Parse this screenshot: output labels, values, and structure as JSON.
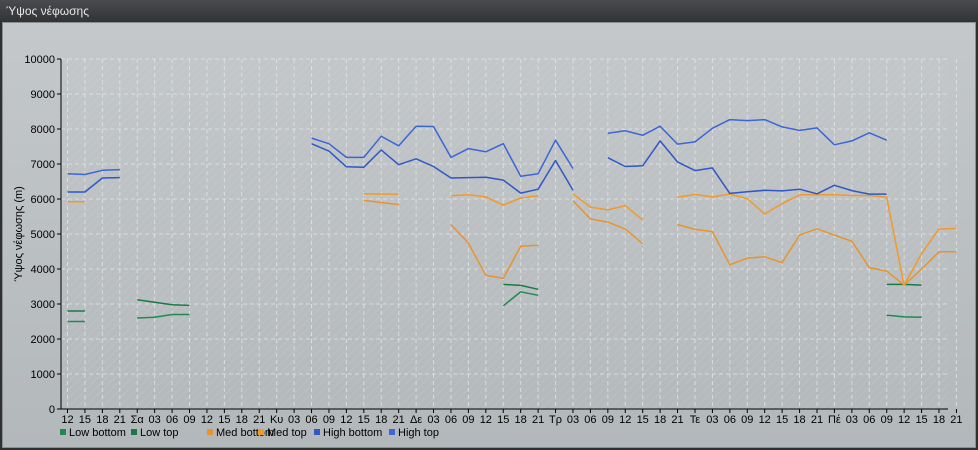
{
  "window": {
    "title": "Ύψος νέφωσης"
  },
  "chart_data": {
    "type": "line",
    "title": "",
    "xlabel": "",
    "ylabel": "Ύψος νέφωσης (m)",
    "ylim": [
      0,
      10000
    ],
    "yticks": [
      0,
      1000,
      2000,
      3000,
      4000,
      5000,
      6000,
      7000,
      8000,
      9000,
      10000
    ],
    "grid": true,
    "legend_position": "bottom-left",
    "x_tick_labels": [
      "12",
      "15",
      "18",
      "21",
      "Σα",
      "03",
      "06",
      "09",
      "12",
      "15",
      "18",
      "21",
      "Κυ",
      "03",
      "06",
      "09",
      "12",
      "15",
      "18",
      "21",
      "Δε",
      "03",
      "06",
      "09",
      "12",
      "15",
      "18",
      "21",
      "Τρ",
      "03",
      "06",
      "09",
      "12",
      "15",
      "18",
      "21",
      "Τε",
      "03",
      "06",
      "09",
      "12",
      "15",
      "18",
      "21",
      "Πέ",
      "03",
      "06",
      "09",
      "12",
      "15",
      "18",
      "21"
    ],
    "series": [
      {
        "name": "Low bottom",
        "color": "#1f8a4f",
        "values": [
          2500,
          2500,
          null,
          null,
          2600,
          2620,
          2700,
          2700,
          null,
          null,
          null,
          null,
          null,
          null,
          null,
          null,
          null,
          null,
          null,
          null,
          null,
          null,
          null,
          null,
          null,
          2950,
          3350,
          3250,
          null,
          null,
          null,
          null,
          null,
          null,
          null,
          null,
          null,
          null,
          null,
          null,
          null,
          null,
          null,
          null,
          null,
          null,
          null,
          2680,
          2630,
          2620,
          null,
          null
        ]
      },
      {
        "name": "Low top",
        "color": "#1a7a45",
        "values": [
          2800,
          2800,
          null,
          null,
          3120,
          3050,
          2980,
          2960,
          null,
          null,
          null,
          null,
          null,
          null,
          null,
          null,
          null,
          null,
          null,
          null,
          null,
          null,
          null,
          null,
          null,
          3560,
          3530,
          3420,
          null,
          null,
          null,
          null,
          null,
          null,
          null,
          null,
          null,
          null,
          null,
          null,
          null,
          null,
          null,
          null,
          null,
          null,
          null,
          3560,
          3560,
          3540,
          null,
          null
        ]
      },
      {
        "name": "Med bottom",
        "color": "#e8932e",
        "values": [
          5920,
          5920,
          null,
          null,
          null,
          null,
          null,
          null,
          null,
          null,
          null,
          null,
          null,
          null,
          null,
          null,
          null,
          5960,
          5900,
          5840,
          null,
          null,
          5270,
          4740,
          3820,
          3730,
          4650,
          4680,
          null,
          5950,
          5430,
          5340,
          5140,
          4720,
          null,
          5270,
          5130,
          5070,
          4120,
          4310,
          4350,
          4180,
          4970,
          5150,
          4970,
          4790,
          4040,
          3940,
          3540,
          4000,
          4490,
          4490
        ]
      },
      {
        "name": "Med top",
        "color": "#f29a28",
        "values": [
          5920,
          5920,
          null,
          null,
          null,
          null,
          null,
          null,
          null,
          null,
          null,
          null,
          null,
          null,
          null,
          null,
          null,
          6150,
          6140,
          6140,
          null,
          null,
          6090,
          6120,
          6060,
          5820,
          6030,
          6090,
          null,
          6150,
          5770,
          5690,
          5810,
          5400,
          null,
          6050,
          6130,
          6060,
          6140,
          6010,
          5570,
          5870,
          6120,
          6120,
          6120,
          6100,
          6100,
          6050,
          3530,
          4440,
          5140,
          5160
        ]
      },
      {
        "name": "High bottom",
        "color": "#2f57c6",
        "values": [
          6200,
          6200,
          6600,
          6610,
          null,
          null,
          null,
          null,
          null,
          null,
          null,
          null,
          null,
          null,
          7580,
          7370,
          6920,
          6910,
          7400,
          6980,
          7150,
          6930,
          6600,
          6610,
          6620,
          6540,
          6170,
          6280,
          7100,
          6250,
          null,
          7180,
          6930,
          6950,
          7660,
          7060,
          6810,
          6890,
          6160,
          6210,
          6250,
          6230,
          6280,
          6150,
          6390,
          6240,
          6140,
          6140,
          null,
          null,
          null,
          null
        ]
      },
      {
        "name": "High top",
        "color": "#3a66d6",
        "values": [
          6720,
          6700,
          6820,
          6840,
          null,
          null,
          null,
          null,
          null,
          null,
          null,
          null,
          null,
          null,
          7740,
          7580,
          7190,
          7190,
          7790,
          7520,
          8080,
          8070,
          7190,
          7440,
          7350,
          7580,
          6650,
          6720,
          7680,
          6870,
          null,
          7880,
          7950,
          7820,
          8080,
          7570,
          7630,
          8020,
          8270,
          8240,
          8270,
          8060,
          7960,
          8030,
          7550,
          7660,
          7890,
          7680,
          null,
          null,
          null,
          null
        ]
      }
    ]
  }
}
